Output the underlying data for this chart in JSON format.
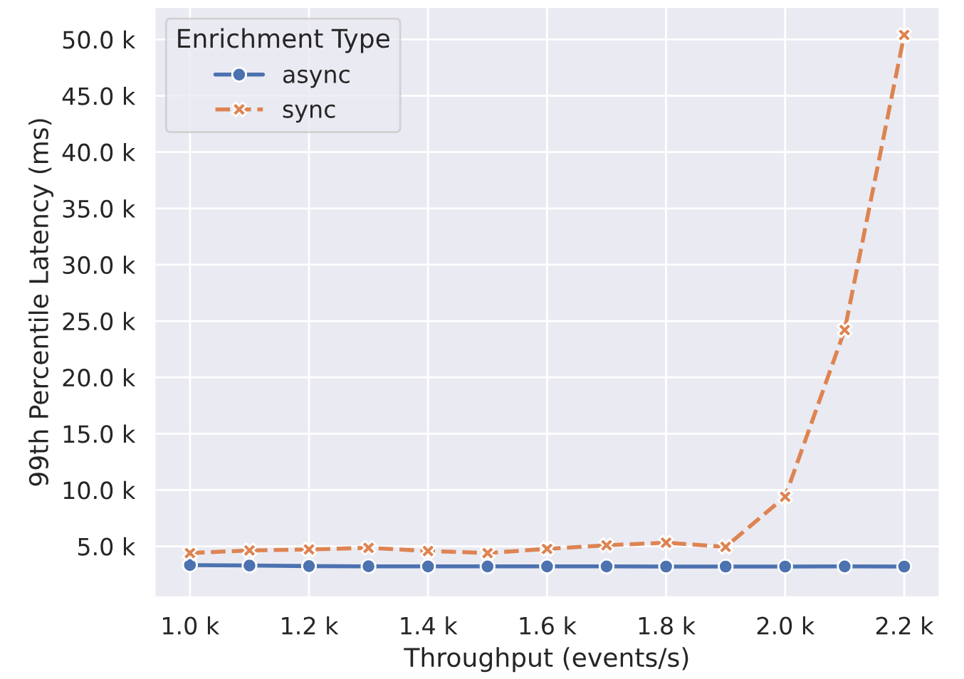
{
  "chart_data": {
    "type": "line",
    "xlabel": "Throughput (events/s)",
    "ylabel": "99th Percentile Latency (ms)",
    "legend_title": "Enrichment Type",
    "legend": "top left",
    "grid": true,
    "x": [
      1000,
      1100,
      1200,
      1300,
      1400,
      1500,
      1600,
      1700,
      1800,
      1900,
      2000,
      2100,
      2200
    ],
    "series": [
      {
        "name": "async",
        "color": "#4c72b0",
        "marker": "circle",
        "line_style": "solid",
        "values": [
          3330,
          3290,
          3240,
          3220,
          3210,
          3210,
          3210,
          3210,
          3200,
          3200,
          3200,
          3210,
          3200
        ]
      },
      {
        "name": "sync",
        "color": "#dd8452",
        "marker": "cross",
        "line_style": "dashed",
        "values": [
          4400,
          4630,
          4720,
          4860,
          4580,
          4400,
          4770,
          5090,
          5320,
          4950,
          9400,
          24200,
          50400
        ]
      }
    ],
    "xlim": [
      940,
      2260
    ],
    "ylim": [
      450,
      52900
    ],
    "xticks": [
      {
        "value": 1000,
        "label": "1.0 k"
      },
      {
        "value": 1200,
        "label": "1.2 k"
      },
      {
        "value": 1400,
        "label": "1.4 k"
      },
      {
        "value": 1600,
        "label": "1.6 k"
      },
      {
        "value": 1800,
        "label": "1.8 k"
      },
      {
        "value": 2000,
        "label": "2.0 k"
      },
      {
        "value": 2200,
        "label": "2.2 k"
      }
    ],
    "yticks": [
      {
        "value": 5000,
        "label": "5.0 k"
      },
      {
        "value": 10000,
        "label": "10.0 k"
      },
      {
        "value": 15000,
        "label": "15.0 k"
      },
      {
        "value": 20000,
        "label": "20.0 k"
      },
      {
        "value": 25000,
        "label": "25.0 k"
      },
      {
        "value": 30000,
        "label": "30.0 k"
      },
      {
        "value": 35000,
        "label": "35.0 k"
      },
      {
        "value": 40000,
        "label": "40.0 k"
      },
      {
        "value": 45000,
        "label": "45.0 k"
      },
      {
        "value": 50000,
        "label": "50.0 k"
      }
    ]
  }
}
